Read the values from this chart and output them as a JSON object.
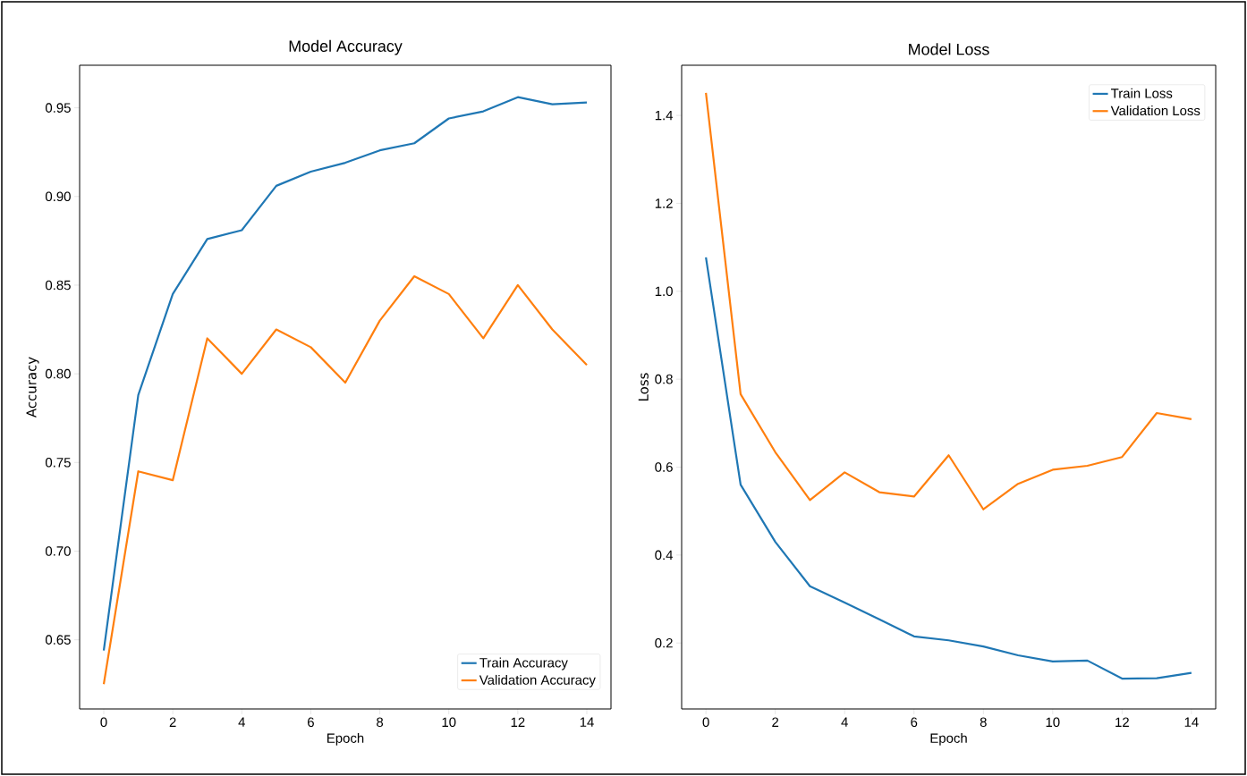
{
  "chart_data": [
    {
      "type": "line",
      "title": "Model Accuracy",
      "xlabel": "Epoch",
      "ylabel": "Accuracy",
      "x": [
        0,
        1,
        2,
        3,
        4,
        5,
        6,
        7,
        8,
        9,
        10,
        11,
        12,
        13,
        14
      ],
      "series": [
        {
          "name": "Train Accuracy",
          "color": "#1f77b4",
          "values": [
            0.644,
            0.788,
            0.845,
            0.876,
            0.881,
            0.906,
            0.914,
            0.919,
            0.926,
            0.93,
            0.944,
            0.948,
            0.956,
            0.952,
            0.953
          ]
        },
        {
          "name": "Validation Accuracy",
          "color": "#ff7f0e",
          "values": [
            0.625,
            0.745,
            0.74,
            0.82,
            0.8,
            0.825,
            0.815,
            0.795,
            0.83,
            0.855,
            0.845,
            0.82,
            0.85,
            0.825,
            0.805
          ]
        }
      ],
      "xlim": [
        -0.7,
        14.7
      ],
      "ylim": [
        0.611,
        0.974
      ],
      "xticks": [
        0,
        2,
        4,
        6,
        8,
        10,
        12,
        14
      ],
      "yticks": [
        0.65,
        {
          "value": 0.7,
          "label": "0.70"
        },
        0.75,
        {
          "value": 0.8,
          "label": "0.80"
        },
        0.85,
        {
          "value": 0.9,
          "label": "0.90"
        },
        0.95
      ],
      "legend": "bottom right"
    },
    {
      "type": "line",
      "title": "Model Loss",
      "xlabel": "Epoch",
      "ylabel": "Loss",
      "x": [
        0,
        1,
        2,
        3,
        4,
        5,
        6,
        7,
        8,
        9,
        10,
        11,
        12,
        13,
        14
      ],
      "series": [
        {
          "name": "Train Loss",
          "color": "#1f77b4",
          "values": [
            1.077,
            0.56,
            0.43,
            0.329,
            0.292,
            0.254,
            0.215,
            0.206,
            0.192,
            0.172,
            0.158,
            0.16,
            0.119,
            0.12,
            0.132
          ]
        },
        {
          "name": "Validation Loss",
          "color": "#ff7f0e",
          "values": [
            1.451,
            0.766,
            0.634,
            0.525,
            0.588,
            0.543,
            0.533,
            0.627,
            0.504,
            0.562,
            0.594,
            0.603,
            0.623,
            0.723,
            0.709
          ]
        }
      ],
      "xlim": [
        -0.7,
        14.7
      ],
      "ylim": [
        0.05,
        1.514
      ],
      "xticks": [
        0,
        2,
        4,
        6,
        8,
        10,
        12,
        14
      ],
      "yticks": [
        0.2,
        0.4,
        0.6,
        0.8,
        {
          "value": 1.0,
          "label": "1.0"
        },
        1.2,
        1.4
      ],
      "legend": "top right"
    }
  ]
}
